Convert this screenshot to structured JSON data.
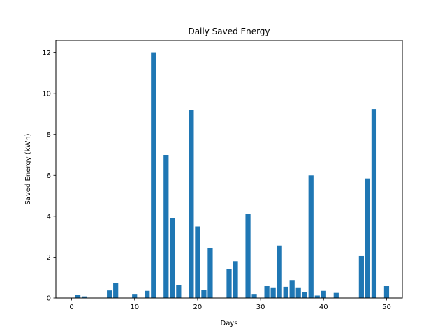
{
  "chart_data": {
    "type": "bar",
    "title": "Daily Saved Energy",
    "xlabel": "Days",
    "ylabel": "Saved Energy (kWh)",
    "xlim": [
      -2.5,
      52.5
    ],
    "ylim": [
      0,
      12.6
    ],
    "xticks": [
      0,
      10,
      20,
      30,
      40,
      50
    ],
    "yticks": [
      0,
      2,
      4,
      6,
      8,
      10,
      12
    ],
    "grid": false,
    "bar_color": "#1f77b4",
    "x": [
      0,
      1,
      2,
      3,
      4,
      5,
      6,
      7,
      8,
      9,
      10,
      11,
      12,
      13,
      14,
      15,
      16,
      17,
      18,
      19,
      20,
      21,
      22,
      23,
      24,
      25,
      26,
      27,
      28,
      29,
      30,
      31,
      32,
      33,
      34,
      35,
      36,
      37,
      38,
      39,
      40,
      41,
      42,
      43,
      44,
      45,
      46,
      47,
      48,
      49,
      50
    ],
    "values": [
      0,
      0.17,
      0.08,
      0,
      0,
      0,
      0.37,
      0.75,
      0,
      0,
      0.2,
      0,
      0.35,
      12.0,
      0,
      7.0,
      3.92,
      0.62,
      0,
      9.2,
      3.5,
      0.4,
      2.45,
      0,
      0,
      1.4,
      1.8,
      0,
      4.12,
      0.2,
      0,
      0.58,
      0.52,
      2.57,
      0.55,
      0.88,
      0.52,
      0.28,
      6.0,
      0.12,
      0.35,
      0,
      0.25,
      0,
      0,
      0,
      2.05,
      5.85,
      9.25,
      0,
      0.58
    ]
  }
}
